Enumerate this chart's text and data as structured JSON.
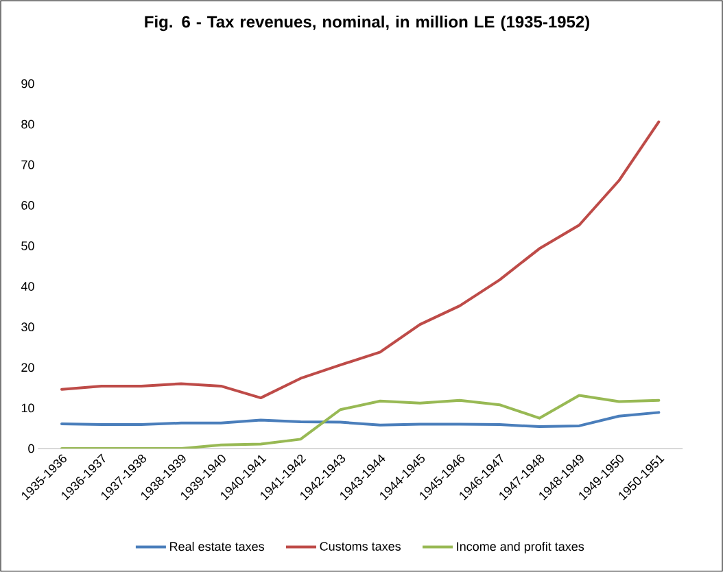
{
  "chart_data": {
    "type": "line",
    "title": "Fig. 6 - Tax revenues, nominal, in million LE (1935-1952)",
    "categories": [
      "1935-1936",
      "1936-1937",
      "1937-1938",
      "1938-1939",
      "1939-1940",
      "1940-1941",
      "1941-1942",
      "1942-1943",
      "1943-1944",
      "1944-1945",
      "1945-1946",
      "1946-1947",
      "1947-1948",
      "1948-1949",
      "1949-1950",
      "1950-1951"
    ],
    "series": [
      {
        "name": "Real estate taxes",
        "color": "#4a7ebb",
        "values": [
          6.1,
          5.9,
          5.9,
          6.3,
          6.3,
          7.0,
          6.6,
          6.5,
          5.8,
          6.0,
          6.0,
          5.9,
          5.4,
          5.6,
          8.0,
          8.9
        ]
      },
      {
        "name": "Customs taxes",
        "color": "#be4b48",
        "values": [
          14.6,
          15.4,
          15.4,
          16.0,
          15.4,
          12.5,
          17.3,
          20.6,
          23.8,
          30.6,
          35.2,
          41.6,
          49.3,
          55.1,
          66.1,
          80.6
        ]
      },
      {
        "name": "Income and profit taxes",
        "color": "#98b954",
        "values": [
          0,
          0,
          0,
          0,
          0.9,
          1.1,
          2.3,
          9.6,
          11.7,
          11.2,
          11.9,
          10.8,
          7.5,
          13.1,
          11.6,
          11.9
        ]
      }
    ],
    "ylim": [
      0,
      90
    ],
    "yticks": [
      0,
      10,
      20,
      30,
      40,
      50,
      60,
      70,
      80,
      90
    ],
    "grid": false,
    "legend": "bottom",
    "marker": "none",
    "line_style": "solid"
  }
}
